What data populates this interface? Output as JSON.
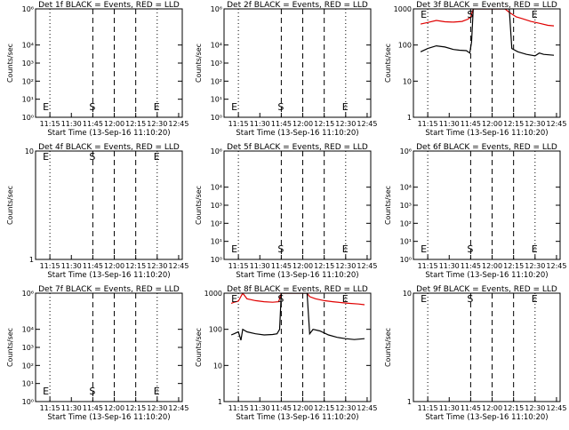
{
  "colors": {
    "events": "#000000",
    "lld": "#e00000",
    "background": "#ffffff"
  },
  "chart_data": [
    {
      "type": "line",
      "title": "Det 1f BLACK = Events, RED = LLD",
      "ylabel": "Counts/sec",
      "xlabel": "Start Time (13-Sep-16 11:10:20)",
      "xticks": [
        "11:15",
        "11:30",
        "11:45",
        "12:00",
        "12:15",
        "12:30",
        "12:45"
      ],
      "yscale": "log",
      "ylim": [
        1,
        1000000
      ],
      "yticks": [
        [
          "10⁶",
          1000000
        ],
        [
          "10⁴",
          10000
        ],
        [
          "10³",
          1000
        ],
        [
          "10²",
          100
        ],
        [
          "10¹",
          10
        ],
        [
          "10⁰",
          1
        ]
      ],
      "event_lines": [
        11.25,
        11.75,
        12.0,
        12.25,
        12.5
      ],
      "markers": [
        {
          "label": "E",
          "t": 11.167
        },
        {
          "label": "S",
          "t": 11.75
        },
        {
          "label": "E",
          "t": 12.5
        }
      ],
      "series": []
    },
    {
      "type": "line",
      "title": "Det 2f BLACK = Events, RED = LLD",
      "ylabel": "Counts/sec",
      "xlabel": "Start Time (13-Sep-16 11:10:20)",
      "xticks": [
        "11:15",
        "11:30",
        "11:45",
        "12:00",
        "12:15",
        "12:30",
        "12:45"
      ],
      "yscale": "log",
      "ylim": [
        1,
        1000000
      ],
      "yticks": [
        [
          "10⁶",
          1000000
        ],
        [
          "10⁴",
          10000
        ],
        [
          "10³",
          1000
        ],
        [
          "10²",
          100
        ],
        [
          "10¹",
          10
        ],
        [
          "10⁰",
          1
        ]
      ],
      "event_lines": [
        11.25,
        11.75,
        12.0,
        12.25,
        12.5
      ],
      "markers": [
        {
          "label": "E",
          "t": 11.167
        },
        {
          "label": "S",
          "t": 11.75
        },
        {
          "label": "E",
          "t": 12.5
        }
      ],
      "series": []
    },
    {
      "type": "line",
      "title": "Det 3f BLACK = Events, RED = LLD",
      "ylabel": "Counts/sec",
      "xlabel": "Start Time (13-Sep-16 11:10:20)",
      "xticks": [
        "11:15",
        "11:30",
        "11:45",
        "12:00",
        "12:15",
        "12:30",
        "12:45"
      ],
      "yscale": "log",
      "ylim": [
        1,
        1000
      ],
      "yticks": [
        [
          "1000",
          1000
        ],
        [
          "100",
          100
        ],
        [
          "10",
          10
        ],
        [
          "1",
          1
        ]
      ],
      "event_lines": [
        11.25,
        11.75,
        12.0,
        12.25,
        12.5
      ],
      "markers": [
        {
          "label": "E",
          "t": 11.167
        },
        {
          "label": "S",
          "t": 11.75
        },
        {
          "label": "E",
          "t": 12.5
        }
      ],
      "series": [
        {
          "color": "lld",
          "points": [
            [
              11.167,
              380
            ],
            [
              11.25,
              420
            ],
            [
              11.35,
              480
            ],
            [
              11.45,
              440
            ],
            [
              11.55,
              430
            ],
            [
              11.65,
              450
            ],
            [
              11.72,
              520
            ],
            [
              11.75,
              600
            ],
            [
              11.78,
              1000
            ],
            [
              11.82,
              1000
            ],
            [
              12.0,
              1000
            ],
            [
              12.15,
              1000
            ],
            [
              12.2,
              800
            ],
            [
              12.28,
              600
            ],
            [
              12.35,
              540
            ],
            [
              12.45,
              450
            ],
            [
              12.55,
              400
            ],
            [
              12.65,
              350
            ],
            [
              12.72,
              340
            ]
          ]
        },
        {
          "color": "events",
          "points": [
            [
              11.167,
              65
            ],
            [
              11.25,
              80
            ],
            [
              11.35,
              95
            ],
            [
              11.45,
              88
            ],
            [
              11.55,
              75
            ],
            [
              11.62,
              72
            ],
            [
              11.7,
              70
            ],
            [
              11.74,
              60
            ],
            [
              11.76,
              120
            ],
            [
              11.78,
              1000
            ],
            [
              11.85,
              1000
            ],
            [
              12.0,
              1000
            ],
            [
              12.2,
              1000
            ],
            [
              12.23,
              80
            ],
            [
              12.3,
              65
            ],
            [
              12.4,
              55
            ],
            [
              12.5,
              50
            ],
            [
              12.55,
              60
            ],
            [
              12.6,
              55
            ],
            [
              12.72,
              52
            ]
          ]
        }
      ]
    },
    {
      "type": "line",
      "title": "Det 4f BLACK = Events, RED = LLD",
      "ylabel": "Counts/sec",
      "xlabel": "Start Time (13-Sep-16 11:10:20)",
      "xticks": [
        "11:15",
        "11:30",
        "11:45",
        "12:00",
        "12:15",
        "12:30",
        "12:45"
      ],
      "yscale": "log",
      "ylim": [
        1,
        10
      ],
      "yticks": [
        [
          "10",
          10
        ],
        [
          "1",
          1
        ]
      ],
      "event_lines": [
        11.25,
        11.75,
        12.0,
        12.25,
        12.5
      ],
      "markers": [
        {
          "label": "E",
          "t": 11.167
        },
        {
          "label": "S",
          "t": 11.75
        },
        {
          "label": "E",
          "t": 12.5
        }
      ],
      "series": []
    },
    {
      "type": "line",
      "title": "Det 5f BLACK = Events, RED = LLD",
      "ylabel": "Counts/sec",
      "xlabel": "Start Time (13-Sep-16 11:10:20)",
      "xticks": [
        "11:15",
        "11:30",
        "11:45",
        "12:00",
        "12:15",
        "12:30",
        "12:45"
      ],
      "yscale": "log",
      "ylim": [
        1,
        1000000
      ],
      "yticks": [
        [
          "10⁶",
          1000000
        ],
        [
          "10⁴",
          10000
        ],
        [
          "10³",
          1000
        ],
        [
          "10²",
          100
        ],
        [
          "10¹",
          10
        ],
        [
          "10⁰",
          1
        ]
      ],
      "event_lines": [
        11.25,
        11.75,
        12.0,
        12.25,
        12.5
      ],
      "markers": [
        {
          "label": "E",
          "t": 11.167
        },
        {
          "label": "S",
          "t": 11.75
        },
        {
          "label": "E",
          "t": 12.5
        }
      ],
      "series": []
    },
    {
      "type": "line",
      "title": "Det 6f BLACK = Events, RED = LLD",
      "ylabel": "Counts/sec",
      "xlabel": "Start Time (13-Sep-16 11:10:20)",
      "xticks": [
        "11:15",
        "11:30",
        "11:45",
        "12:00",
        "12:15",
        "12:30",
        "12:45"
      ],
      "yscale": "log",
      "ylim": [
        1,
        1000000
      ],
      "yticks": [
        [
          "10⁶",
          1000000
        ],
        [
          "10⁴",
          10000
        ],
        [
          "10³",
          1000
        ],
        [
          "10²",
          100
        ],
        [
          "10¹",
          10
        ],
        [
          "10⁰",
          1
        ]
      ],
      "event_lines": [
        11.25,
        11.75,
        12.0,
        12.25,
        12.5
      ],
      "markers": [
        {
          "label": "E",
          "t": 11.167
        },
        {
          "label": "S",
          "t": 11.75
        },
        {
          "label": "E",
          "t": 12.5
        }
      ],
      "series": []
    },
    {
      "type": "line",
      "title": "Det 7f BLACK = Events, RED = LLD",
      "ylabel": "Counts/sec",
      "xlabel": "Start Time (13-Sep-16 11:10:20)",
      "xticks": [
        "11:15",
        "11:30",
        "11:45",
        "12:00",
        "12:15",
        "12:30",
        "12:45"
      ],
      "yscale": "log",
      "ylim": [
        1,
        1000000
      ],
      "yticks": [
        [
          "10⁶",
          1000000
        ],
        [
          "10⁴",
          10000
        ],
        [
          "10³",
          1000
        ],
        [
          "10²",
          100
        ],
        [
          "10¹",
          10
        ],
        [
          "10⁰",
          1
        ]
      ],
      "event_lines": [
        11.25,
        11.75,
        12.0,
        12.25,
        12.5
      ],
      "markers": [
        {
          "label": "E",
          "t": 11.167
        },
        {
          "label": "S",
          "t": 11.75
        },
        {
          "label": "E",
          "t": 12.5
        }
      ],
      "series": []
    },
    {
      "type": "line",
      "title": "Det 8f BLACK = Events, RED = LLD",
      "ylabel": "Counts/sec",
      "xlabel": "Start Time (13-Sep-16 11:10:20)",
      "xticks": [
        "11:15",
        "11:30",
        "11:45",
        "12:00",
        "12:15",
        "12:30",
        "12:45"
      ],
      "yscale": "log",
      "ylim": [
        1,
        1000
      ],
      "yticks": [
        [
          "1000",
          1000
        ],
        [
          "100",
          100
        ],
        [
          "10",
          10
        ],
        [
          "1",
          1
        ]
      ],
      "event_lines": [
        11.25,
        11.75,
        12.0,
        12.25,
        12.5
      ],
      "markers": [
        {
          "label": "E",
          "t": 11.167
        },
        {
          "label": "S",
          "t": 11.75
        },
        {
          "label": "E",
          "t": 12.5
        }
      ],
      "series": [
        {
          "color": "lld",
          "points": [
            [
              11.167,
              520
            ],
            [
              11.2,
              560
            ],
            [
              11.25,
              600
            ],
            [
              11.3,
              1000
            ],
            [
              11.35,
              700
            ],
            [
              11.45,
              620
            ],
            [
              11.55,
              580
            ],
            [
              11.65,
              560
            ],
            [
              11.72,
              580
            ],
            [
              11.75,
              1000
            ],
            [
              11.9,
              1000
            ],
            [
              12.05,
              1000
            ],
            [
              12.08,
              800
            ],
            [
              12.15,
              700
            ],
            [
              12.25,
              620
            ],
            [
              12.35,
              580
            ],
            [
              12.45,
              550
            ],
            [
              12.55,
              520
            ],
            [
              12.65,
              500
            ],
            [
              12.72,
              480
            ]
          ]
        },
        {
          "color": "events",
          "points": [
            [
              11.167,
              70
            ],
            [
              11.2,
              75
            ],
            [
              11.25,
              85
            ],
            [
              11.28,
              50
            ],
            [
              11.3,
              100
            ],
            [
              11.35,
              85
            ],
            [
              11.45,
              75
            ],
            [
              11.55,
              70
            ],
            [
              11.65,
              72
            ],
            [
              11.7,
              75
            ],
            [
              11.73,
              100
            ],
            [
              11.75,
              1000
            ],
            [
              11.9,
              1000
            ],
            [
              12.05,
              1000
            ],
            [
              12.08,
              75
            ],
            [
              12.12,
              100
            ],
            [
              12.2,
              90
            ],
            [
              12.3,
              70
            ],
            [
              12.4,
              60
            ],
            [
              12.5,
              55
            ],
            [
              12.6,
              52
            ],
            [
              12.72,
              55
            ]
          ]
        }
      ]
    },
    {
      "type": "line",
      "title": "Det 9f BLACK = Events, RED = LLD",
      "ylabel": "Counts/sec",
      "xlabel": "Start Time (13-Sep-16 11:10:20)",
      "xticks": [
        "11:15",
        "11:30",
        "11:45",
        "12:00",
        "12:15",
        "12:30",
        "12:45"
      ],
      "yscale": "log",
      "ylim": [
        1,
        10
      ],
      "yticks": [
        [
          "10",
          10
        ],
        [
          "1",
          1
        ]
      ],
      "event_lines": [
        11.25,
        11.75,
        12.0,
        12.25,
        12.5
      ],
      "markers": [
        {
          "label": "E",
          "t": 11.167
        },
        {
          "label": "S",
          "t": 11.75
        },
        {
          "label": "E",
          "t": 12.5
        }
      ],
      "series": []
    }
  ]
}
